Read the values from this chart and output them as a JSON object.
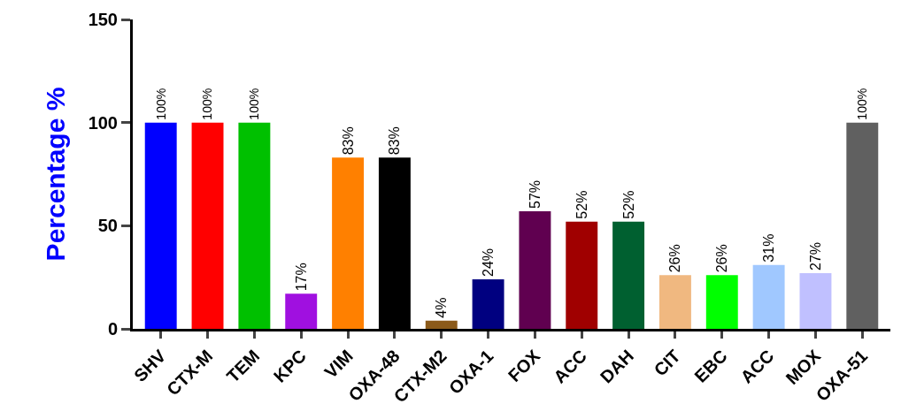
{
  "chart_data": {
    "type": "bar",
    "ylabel": "Percentage %",
    "categories": [
      "SHV",
      "CTX-M",
      "TEM",
      "KPC",
      "VIM",
      "OXA-48",
      "CTX-M2",
      "OXA-1",
      "FOX",
      "ACC",
      "DAH",
      "CIT",
      "EBC",
      "ACC",
      "MOX",
      "OXA-51"
    ],
    "values": [
      100,
      100,
      100,
      17,
      83,
      83,
      4,
      24,
      57,
      52,
      52,
      26,
      26,
      31,
      27,
      100
    ],
    "value_labels": [
      "100%",
      "100%",
      "100%",
      "17%",
      "83%",
      "83%",
      "4%",
      "24%",
      "57%",
      "52%",
      "52%",
      "26%",
      "26%",
      "31%",
      "27%",
      "100%"
    ],
    "colors": [
      "#0000ff",
      "#ff0000",
      "#00c000",
      "#a010e0",
      "#ff8000",
      "#000000",
      "#8b5a1a",
      "#000080",
      "#600050",
      "#a00000",
      "#006030",
      "#f0b880",
      "#00ff00",
      "#a0c8ff",
      "#c0c0ff",
      "#606060"
    ],
    "ylim": [
      0,
      150
    ],
    "yticks": [
      0,
      50,
      100,
      150
    ],
    "grid": false
  }
}
